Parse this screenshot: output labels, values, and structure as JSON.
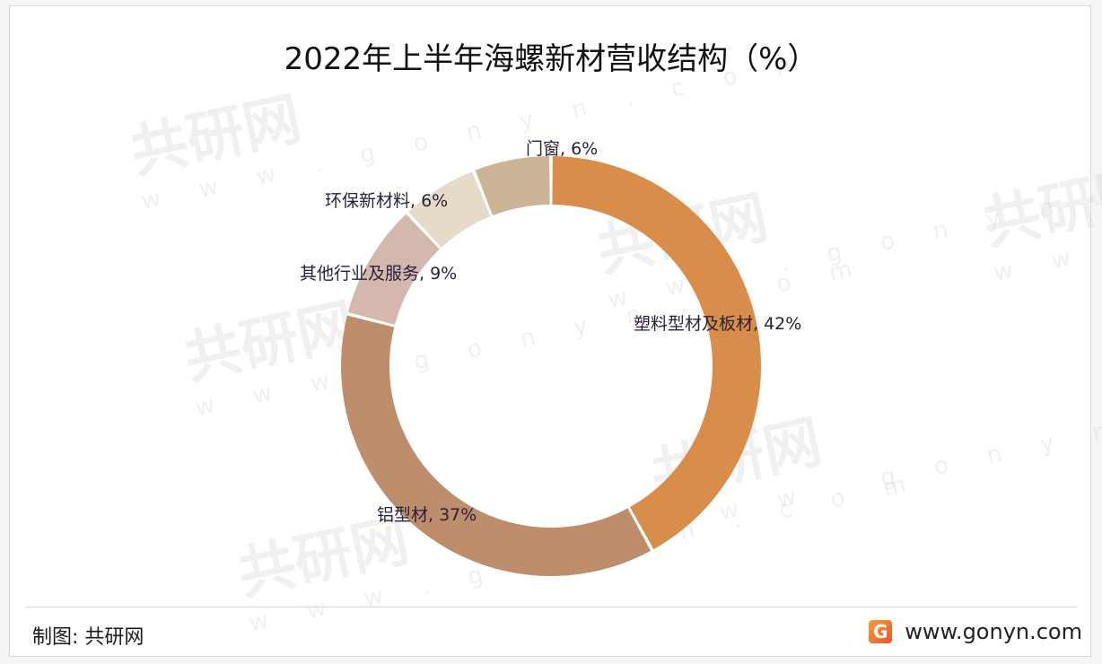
{
  "title": "2022年上半年海螺新材营收结构（%）",
  "footer": {
    "credit": "制图: 共研网",
    "brand_logo": "G",
    "brand_url": "www.gonyn.com"
  },
  "watermark": {
    "text": "共研网",
    "url": "w w w . g o n y n . c o m"
  },
  "colors": {
    "plastic": "#d88d4a",
    "aluminum": "#bd8d6c",
    "other": "#d4b8ae",
    "eco": "#e5dbc8",
    "doors": "#cbb596"
  },
  "chart_data": {
    "type": "pie",
    "variant": "donut",
    "title": "2022年上半年海螺新材营收结构（%）",
    "categories": [
      "塑料型材及板材",
      "铝型材",
      "其他行业及服务",
      "环保新材料",
      "门窗"
    ],
    "values": [
      42,
      37,
      9,
      6,
      6
    ],
    "unit": "%",
    "start_angle": "12 o'clock",
    "direction": "clockwise",
    "labels": [
      "塑料型材及板材, 42%",
      "铝型材, 37%",
      "其他行业及服务, 9%",
      "环保新材料, 6%",
      "门窗, 6%"
    ],
    "legend": "none (inline data labels)"
  }
}
